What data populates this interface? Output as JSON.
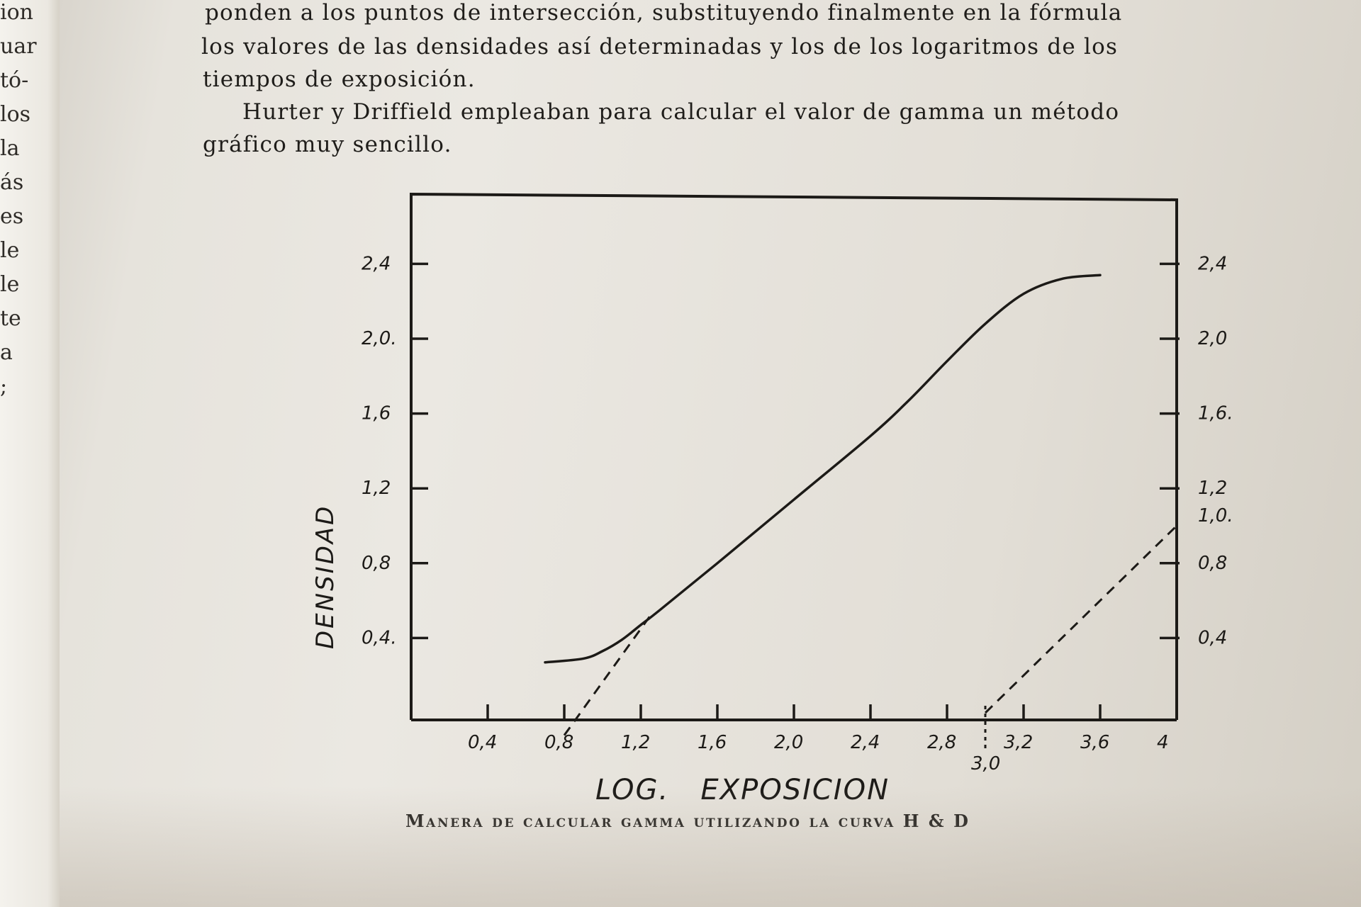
{
  "margin_fragments": [
    "ion",
    "uar",
    "tó-",
    "los",
    "la",
    "ás",
    "es",
    "le",
    "le",
    "te",
    "a",
    ";"
  ],
  "paragraph_1": [
    "ponden a los puntos de intersección, substituyendo finalmente en la fórmula",
    "los valores de las densidades así determinadas y los de los logaritmos de los",
    "tiempos de exposición."
  ],
  "paragraph_2": [
    "Hurter y Driffield empleaban para calcular el valor de gamma un método",
    "gráfico muy sencillo."
  ],
  "figure": {
    "chart_data": {
      "type": "line",
      "xlabel": "LOG.   EXPOSICION",
      "ylabel": "DENSIDAD",
      "xlim": [
        0.2,
        4.0
      ],
      "ylim": [
        0.0,
        2.6
      ],
      "x_ticks": [
        {
          "value": 0.4,
          "label": "0,4"
        },
        {
          "value": 0.8,
          "label": "0,8"
        },
        {
          "value": 1.2,
          "label": "1,2"
        },
        {
          "value": 1.6,
          "label": "1,6"
        },
        {
          "value": 2.0,
          "label": "2,0"
        },
        {
          "value": 2.4,
          "label": "2,4"
        },
        {
          "value": 2.8,
          "label": "2,8"
        },
        {
          "value": 3.2,
          "label": "3,2"
        },
        {
          "value": 3.6,
          "label": "3,6"
        },
        {
          "value": 4.0,
          "label": "4"
        }
      ],
      "x_annotation": {
        "value": 3.0,
        "label": "3,0"
      },
      "y_ticks_left": [
        {
          "value": 0.4,
          "label": "0,4."
        },
        {
          "value": 0.8,
          "label": "0,8"
        },
        {
          "value": 1.2,
          "label": "1,2"
        },
        {
          "value": 1.6,
          "label": "1,6"
        },
        {
          "value": 2.0,
          "label": "2,0."
        },
        {
          "value": 2.4,
          "label": "2,4"
        }
      ],
      "y_ticks_right": [
        {
          "value": 0.4,
          "label": "0,4"
        },
        {
          "value": 0.8,
          "label": "0,8"
        },
        {
          "value": 1.2,
          "label": "1,2"
        },
        {
          "value": 1.6,
          "label": "1,6."
        },
        {
          "value": 2.0,
          "label": "2,0"
        },
        {
          "value": 2.4,
          "label": "2,4"
        }
      ],
      "y_annotation_right": {
        "value": 1.0,
        "label": "1,0."
      },
      "series": [
        {
          "style": "solid",
          "points": [
            [
              0.7,
              0.27
            ],
            [
              0.9,
              0.29
            ],
            [
              1.0,
              0.33
            ],
            [
              1.1,
              0.39
            ],
            [
              1.2,
              0.47
            ],
            [
              1.3,
              0.55
            ],
            [
              1.6,
              0.8
            ],
            [
              2.0,
              1.14
            ],
            [
              2.4,
              1.48
            ],
            [
              2.6,
              1.67
            ],
            [
              2.8,
              1.88
            ],
            [
              3.0,
              2.08
            ],
            [
              3.2,
              2.24
            ],
            [
              3.4,
              2.32
            ],
            [
              3.6,
              2.34
            ]
          ]
        },
        {
          "style": "dashed",
          "points": [
            [
              0.8,
              -0.12
            ],
            [
              1.25,
              0.52
            ]
          ]
        },
        {
          "style": "dashed",
          "points": [
            [
              3.0,
              0.0
            ],
            [
              4.0,
              1.0
            ]
          ]
        }
      ],
      "grid": false
    },
    "caption": "Manera de calcular gamma utilizando la curva H & D"
  }
}
